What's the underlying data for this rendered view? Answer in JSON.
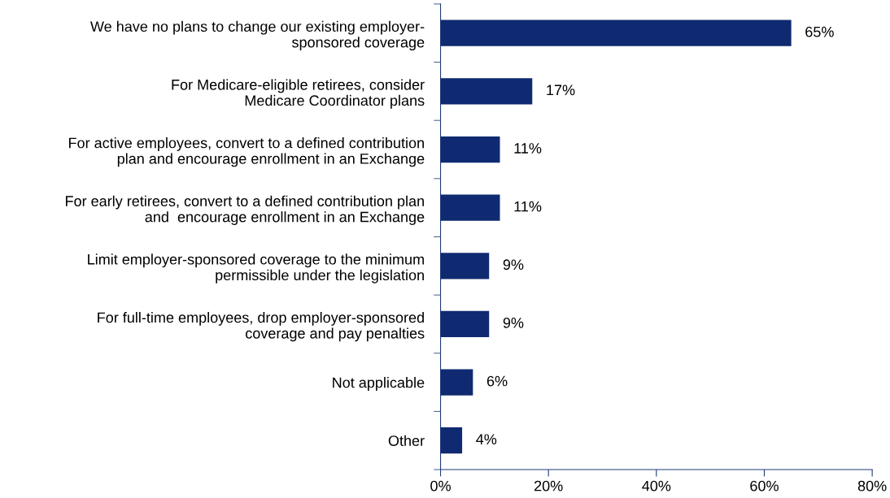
{
  "chart_data": {
    "type": "bar",
    "orientation": "horizontal",
    "categories": [
      "We have no plans to change our existing employer-\nsponsored coverage",
      "For Medicare-eligible retirees, consider\nMedicare Coordinator plans",
      "For active employees, convert to a defined contribution\nplan and encourage enrollment in an Exchange",
      "For early retirees, convert to a defined contribution plan\nand  encourage enrollment in an Exchange",
      "Limit employer-sponsored coverage to the minimum\npermissible under the legislation",
      "For full-time employees, drop employer-sponsored\ncoverage and pay penalties",
      "Not applicable",
      "Other"
    ],
    "values": [
      65,
      17,
      11,
      11,
      9,
      9,
      6,
      4
    ],
    "value_labels": [
      "65%",
      "17%",
      "11%",
      "11%",
      "9%",
      "9%",
      "6%",
      "4%"
    ],
    "color": "#0f2a70",
    "xlim": [
      0,
      80
    ],
    "xticks": [
      {
        "value": 0,
        "label": "0%"
      },
      {
        "value": 20,
        "label": "20%"
      },
      {
        "value": 40,
        "label": "40%"
      },
      {
        "value": 60,
        "label": "60%"
      },
      {
        "value": 80,
        "label": "80%"
      }
    ],
    "grid": false,
    "legend": false
  }
}
